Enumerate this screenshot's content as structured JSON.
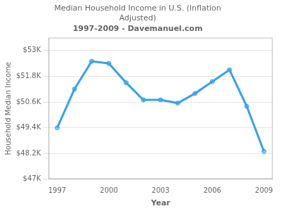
{
  "chart_data": {
    "type": "line",
    "title": "Median Household Income in U.S. (Inflation\nAdjusted)",
    "subtitle": "1997-2009 - Davemanuel.com",
    "xlabel": "Year",
    "ylabel": "Household Median Income",
    "x": [
      1997,
      1998,
      1999,
      2000,
      2001,
      2002,
      2003,
      2004,
      2005,
      2006,
      2007,
      2008,
      2009
    ],
    "values": [
      49400,
      51200,
      52500,
      52400,
      51500,
      50700,
      50700,
      50550,
      51000,
      51550,
      52100,
      50400,
      48300
    ],
    "xlim": [
      1996.5,
      2009.5
    ],
    "xticks": [
      1997,
      2000,
      2003,
      2006,
      2009
    ],
    "ylim": [
      47000,
      53600
    ],
    "yticks": [
      {
        "value": 47000,
        "label": "$47K"
      },
      {
        "value": 48200,
        "label": "$48.2K"
      },
      {
        "value": 49400,
        "label": "$49.4K"
      },
      {
        "value": 50600,
        "label": "$50.6K"
      },
      {
        "value": 51800,
        "label": "$51.8K"
      },
      {
        "value": 53000,
        "label": "$53K"
      }
    ],
    "grid": "y",
    "marker": "circle"
  }
}
